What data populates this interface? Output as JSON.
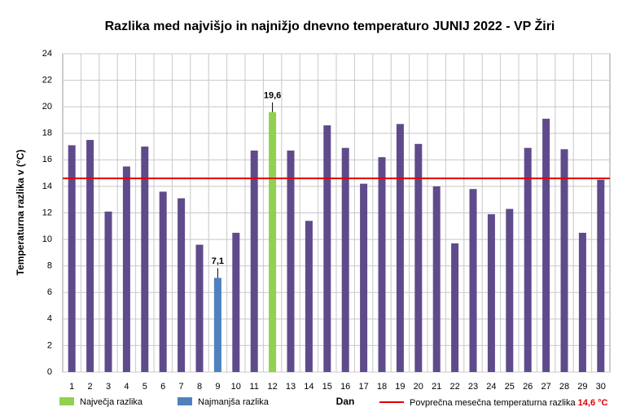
{
  "chart_data": {
    "type": "bar",
    "title": "Razlika med najvišjo in najnižjo dnevno temperaturo JUNIJ 2022 - VP Žiri",
    "x_label": "Dan",
    "y_label": "Temperaturna razlika v (°C)",
    "categories": [
      1,
      2,
      3,
      4,
      5,
      6,
      7,
      8,
      9,
      10,
      11,
      12,
      13,
      14,
      15,
      16,
      17,
      18,
      19,
      20,
      21,
      22,
      23,
      24,
      25,
      26,
      27,
      28,
      29,
      30
    ],
    "values": [
      17.1,
      17.5,
      12.1,
      15.5,
      17.0,
      13.6,
      13.1,
      9.6,
      7.1,
      10.5,
      16.7,
      19.6,
      16.7,
      11.4,
      18.6,
      16.9,
      14.2,
      16.2,
      18.7,
      17.2,
      14.0,
      9.7,
      13.8,
      11.9,
      12.3,
      16.9,
      19.1,
      16.8,
      10.5,
      14.5
    ],
    "value_labels": [
      null,
      null,
      null,
      null,
      null,
      null,
      null,
      null,
      "7,1",
      null,
      null,
      "19,6",
      null,
      null,
      null,
      null,
      null,
      null,
      null,
      null,
      null,
      null,
      null,
      null,
      null,
      null,
      null,
      null,
      null,
      null
    ],
    "bar_colors": [
      "#5f4b8b",
      "#5f4b8b",
      "#5f4b8b",
      "#5f4b8b",
      "#5f4b8b",
      "#5f4b8b",
      "#5f4b8b",
      "#5f4b8b",
      "#4f81bd",
      "#5f4b8b",
      "#5f4b8b",
      "#92d050",
      "#5f4b8b",
      "#5f4b8b",
      "#5f4b8b",
      "#5f4b8b",
      "#5f4b8b",
      "#5f4b8b",
      "#5f4b8b",
      "#5f4b8b",
      "#5f4b8b",
      "#5f4b8b",
      "#5f4b8b",
      "#5f4b8b",
      "#5f4b8b",
      "#5f4b8b",
      "#5f4b8b",
      "#5f4b8b",
      "#5f4b8b",
      "#5f4b8b"
    ],
    "legend": [
      {
        "name": "Največja razlika",
        "color": "#92d050"
      },
      {
        "name": "Najmanjša razlika",
        "color": "#4f81bd"
      }
    ],
    "average": {
      "value": 14.6,
      "name": "Povprečna mesečna temperaturna razlika",
      "value_label": "14,6 °C",
      "color": "#e00000"
    },
    "ylim": [
      0,
      24
    ],
    "yticks": [
      0,
      2,
      4,
      6,
      8,
      10,
      12,
      14,
      16,
      18,
      20,
      22,
      24
    ],
    "grid": true
  }
}
